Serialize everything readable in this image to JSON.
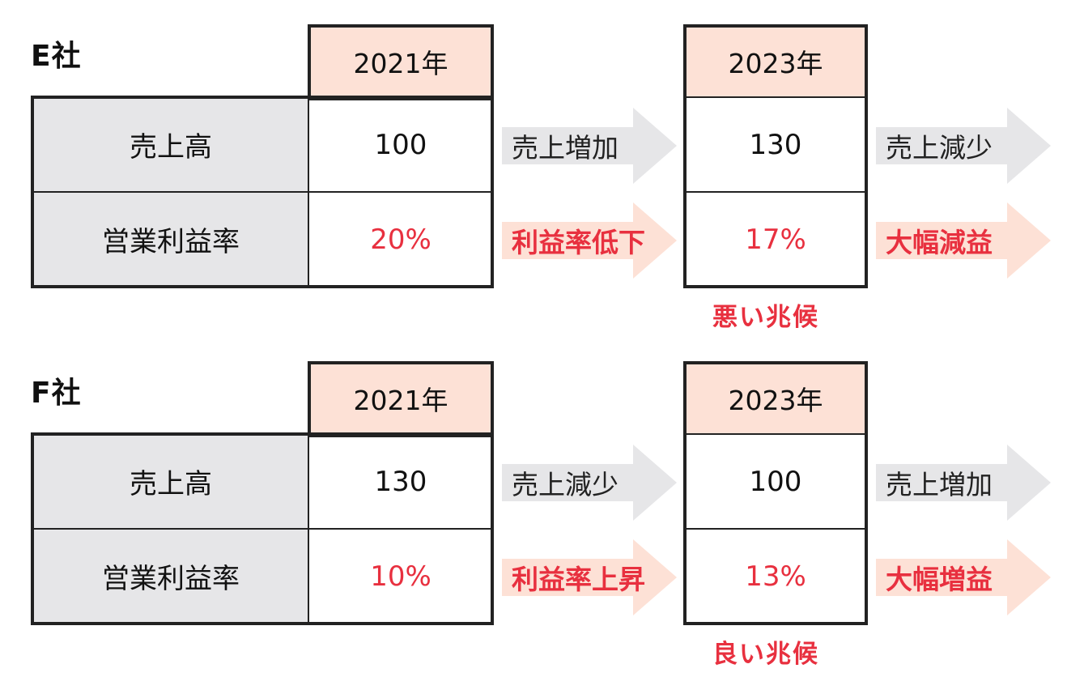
{
  "sections": [
    {
      "company": "E社",
      "year_a": "2021年",
      "year_b": "2023年",
      "row_labels": [
        "売上高",
        "営業利益率"
      ],
      "sales_a": "100",
      "sales_b": "130",
      "margin_a": "20%",
      "margin_b": "17%",
      "arrow_sales_mid": "売上増加",
      "arrow_sales_end": "売上減少",
      "arrow_margin_mid": "利益率低下",
      "arrow_margin_end": "大幅減益",
      "note": "悪い兆候"
    },
    {
      "company": "F社",
      "year_a": "2021年",
      "year_b": "2023年",
      "row_labels": [
        "売上高",
        "営業利益率"
      ],
      "sales_a": "130",
      "sales_b": "100",
      "margin_a": "10%",
      "margin_b": "13%",
      "arrow_sales_mid": "売上減少",
      "arrow_sales_end": "売上増加",
      "arrow_margin_mid": "利益率上昇",
      "arrow_margin_end": "大幅増益",
      "note": "良い兆候"
    }
  ],
  "colors": {
    "header_fill": "#fde1d6",
    "label_fill": "#e6e6e8",
    "gray_arrow": "#e6e6e8",
    "pink_arrow": "#fde1d6",
    "accent_red": "#e8303f"
  }
}
